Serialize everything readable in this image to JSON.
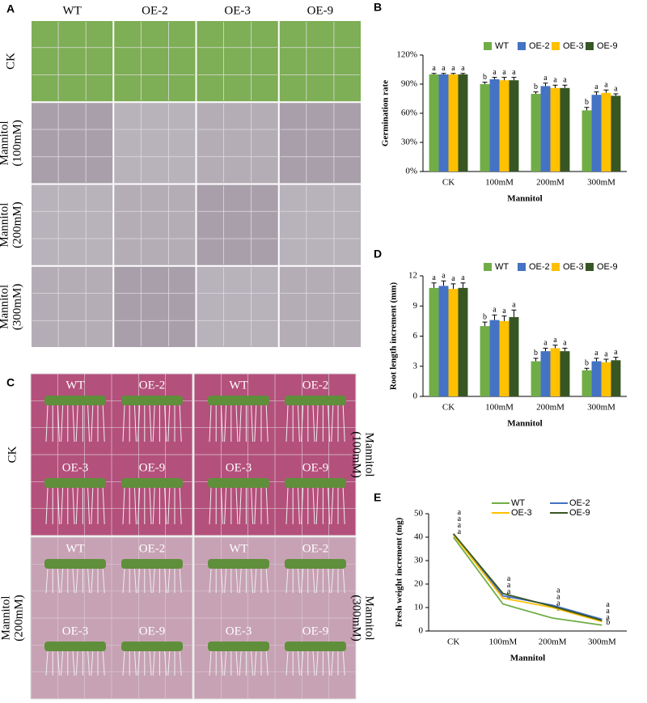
{
  "panels": {
    "A": {
      "letter": "A",
      "columns": [
        "WT",
        "OE-2",
        "OE-3",
        "OE-9"
      ],
      "rows": [
        [
          "CK"
        ],
        [
          "Mannitol",
          "(100mM)"
        ],
        [
          "Mannitol",
          "(200mM)"
        ],
        [
          "Mannitol",
          "(300mM)"
        ]
      ]
    },
    "C": {
      "letter": "C",
      "plates": [
        {
          "condition": [
            "CK"
          ],
          "genotypes": [
            "WT",
            "OE-2",
            "OE-3",
            "OE-9"
          ]
        },
        {
          "condition": [
            "Mannitol",
            "(100mM)"
          ],
          "genotypes": [
            "WT",
            "OE-2",
            "OE-3",
            "OE-9"
          ]
        },
        {
          "condition": [
            "Mannitol",
            "(200mM)"
          ],
          "genotypes": [
            "WT",
            "OE-2",
            "OE-3",
            "OE-9"
          ]
        },
        {
          "condition": [
            "Mannitol",
            "(300mM)"
          ],
          "genotypes": [
            "WT",
            "OE-2",
            "OE-3",
            "OE-9"
          ]
        }
      ]
    }
  },
  "chart_data": [
    {
      "type": "bar",
      "panel": "B",
      "y_label": "Germination rate",
      "x_label": "Mannitol",
      "categories": [
        "CK",
        "100mM",
        "200mM",
        "300mM"
      ],
      "ylim": [
        0,
        120
      ],
      "yticks": [
        {
          "value": 0,
          "label": "0%"
        },
        {
          "value": 30,
          "label": "30%"
        },
        {
          "value": 60,
          "label": "60%"
        },
        {
          "value": 90,
          "label": "90%"
        },
        {
          "value": 120,
          "label": "120%"
        }
      ],
      "legend": "top",
      "series": [
        {
          "name": "WT",
          "color": "#70ad47",
          "values": [
            100,
            90,
            80,
            63
          ],
          "errors": [
            1,
            2,
            2,
            3
          ],
          "letters": [
            "a",
            "b",
            "b",
            "b"
          ]
        },
        {
          "name": "OE-2",
          "color": "#4472c4",
          "values": [
            100,
            95,
            88,
            79
          ],
          "errors": [
            1,
            2,
            3,
            3
          ],
          "letters": [
            "a",
            "a",
            "a",
            "a"
          ]
        },
        {
          "name": "OE-3",
          "color": "#ffc000",
          "values": [
            100,
            94,
            86,
            81
          ],
          "errors": [
            1,
            3,
            3,
            3
          ],
          "letters": [
            "a",
            "a",
            "a",
            "a"
          ]
        },
        {
          "name": "OE-9",
          "color": "#375623",
          "values": [
            100,
            94,
            86,
            78
          ],
          "errors": [
            1,
            3,
            3,
            2
          ],
          "letters": [
            "a",
            "a",
            "a",
            "a"
          ]
        }
      ]
    },
    {
      "type": "bar",
      "panel": "D",
      "y_label": "Root length increment (mm)",
      "x_label": "Mannitol",
      "categories": [
        "CK",
        "100mM",
        "200mM",
        "300mM"
      ],
      "ylim": [
        0,
        12
      ],
      "yticks": [
        0,
        3,
        6,
        9,
        12
      ],
      "legend": "top",
      "series": [
        {
          "name": "WT",
          "color": "#70ad47",
          "values": [
            10.8,
            7.0,
            3.5,
            2.6
          ],
          "errors": [
            0.5,
            0.4,
            0.3,
            0.2
          ],
          "letters": [
            "a",
            "b",
            "b",
            "b"
          ]
        },
        {
          "name": "OE-2",
          "color": "#4472c4",
          "values": [
            11.0,
            7.6,
            4.5,
            3.5
          ],
          "errors": [
            0.5,
            0.5,
            0.3,
            0.3
          ],
          "letters": [
            "a",
            "a",
            "a",
            "a"
          ]
        },
        {
          "name": "OE-3",
          "color": "#ffc000",
          "values": [
            10.7,
            7.5,
            4.8,
            3.4
          ],
          "errors": [
            0.5,
            0.5,
            0.3,
            0.3
          ],
          "letters": [
            "a",
            "a",
            "a",
            "a"
          ]
        },
        {
          "name": "OE-9",
          "color": "#375623",
          "values": [
            10.8,
            7.9,
            4.5,
            3.6
          ],
          "errors": [
            0.5,
            0.7,
            0.3,
            0.3
          ],
          "letters": [
            "a",
            "a",
            "a",
            "a"
          ]
        }
      ]
    },
    {
      "type": "line",
      "panel": "E",
      "y_label": "Fresh weight increment (mg)",
      "x_label": "Mannitol",
      "categories": [
        "CK",
        "100mM",
        "200mM",
        "300mM"
      ],
      "ylim": [
        0,
        50
      ],
      "yticks": [
        0,
        10,
        20,
        30,
        40,
        50
      ],
      "legend": "top",
      "series": [
        {
          "name": "WT",
          "color": "#70ad47",
          "values": [
            40,
            11.5,
            5.5,
            2.5
          ],
          "letters": [
            "a",
            "b",
            "b",
            "b"
          ]
        },
        {
          "name": "OE-2",
          "color": "#4472c4",
          "values": [
            41,
            15,
            11,
            5
          ],
          "letters": [
            "a",
            "a",
            "a",
            "a"
          ]
        },
        {
          "name": "OE-3",
          "color": "#ffc000",
          "values": [
            41,
            14,
            10,
            4
          ],
          "letters": [
            "a",
            "a",
            "a",
            "a"
          ]
        },
        {
          "name": "OE-9",
          "color": "#375623",
          "values": [
            41.5,
            16,
            10.5,
            4.5
          ],
          "letters": [
            "a",
            "a",
            "a",
            "a"
          ]
        }
      ]
    }
  ]
}
